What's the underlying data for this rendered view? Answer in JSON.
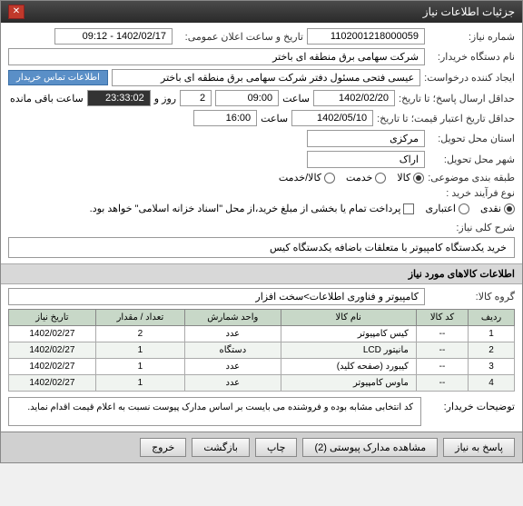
{
  "window": {
    "title": "جزئیات اطلاعات نیاز"
  },
  "form": {
    "need_number_label": "شماره نیاز:",
    "need_number": "1102001218000059",
    "announce_label": "تاریخ و ساعت اعلان عمومی:",
    "announce_value": "1402/02/17 - 09:12",
    "buyer_name_label": "نام دستگاه خریدار:",
    "buyer_name": "شرکت سهامی برق منطقه ای باختر",
    "creator_label": "ایجاد کننده درخواست:",
    "creator": "عیسی فتحی مسئول دفتر شرکت سهامی برق منطقه ای باختر",
    "contact_btn": "اطلاعات تماس خریدار",
    "deadline_label": "حداقل ارسال پاسخ؛ تا تاریخ:",
    "deadline_date": "1402/02/20",
    "time_label": "ساعت",
    "deadline_time": "09:00",
    "day_label": "روز و",
    "day_val": "2",
    "countdown": "23:33:02",
    "remaining": "ساعت باقی مانده",
    "validity_label": "حداقل تاریخ اعتبار قیمت؛ تا تاریخ:",
    "validity_date": "1402/05/10",
    "validity_time": "16:00",
    "province_label": "استان محل تحویل:",
    "province": "مرکزی",
    "city_label": "شهر محل تحویل:",
    "city": "اراک",
    "category_label": "طبقه بندی موضوعی:",
    "cat_goods": "کالا",
    "cat_service": "خدمت",
    "cat_both": "کالا/خدمت",
    "process_label": "نوع فرآیند خرید :",
    "proc_cash": "نقدی",
    "proc_credit": "اعتباری",
    "credit_note": "پرداخت تمام یا بخشی از مبلغ خرید،از محل \"اسناد خزانه اسلامی\" خواهد بود."
  },
  "need_desc": {
    "label": "شرح کلی نیاز:",
    "text": "خرید یکدستگاه کامپیوتر با متعلقات باضافه یکدستگاه کیس"
  },
  "items_section": {
    "header": "اطلاعات کالاهای مورد نیاز",
    "group_label": "گروه کالا:",
    "group_value": "کامپیوتر و فناوری اطلاعات>سخت افزار"
  },
  "table": {
    "headers": {
      "row": "ردیف",
      "code": "کد کالا",
      "name": "نام کالا",
      "unit": "واحد شمارش",
      "qty": "تعداد / مقدار",
      "date": "تاریخ نیاز"
    },
    "rows": [
      {
        "n": "1",
        "code": "--",
        "name": "کیس کامپیوتر",
        "unit": "عدد",
        "qty": "2",
        "date": "1402/02/27"
      },
      {
        "n": "2",
        "code": "--",
        "name": "مانیتور LCD",
        "unit": "دستگاه",
        "qty": "1",
        "date": "1402/02/27"
      },
      {
        "n": "3",
        "code": "--",
        "name": "کیبورد (صفحه کلید)",
        "unit": "عدد",
        "qty": "1",
        "date": "1402/02/27"
      },
      {
        "n": "4",
        "code": "--",
        "name": "ماوس کامپیوتر",
        "unit": "عدد",
        "qty": "1",
        "date": "1402/02/27"
      }
    ]
  },
  "buyer_notes": {
    "label": "توضیحات خریدار:",
    "text": "کد انتخابی مشابه بوده و فروشنده می بایست بر اساس مدارک پیوست نسبت به اعلام قیمت اقدام نماید."
  },
  "footer": {
    "respond": "پاسخ به نیاز",
    "attachments": "مشاهده مدارک پیوستی (2)",
    "print": "چاپ",
    "back": "بازگشت",
    "close": "خروج"
  }
}
